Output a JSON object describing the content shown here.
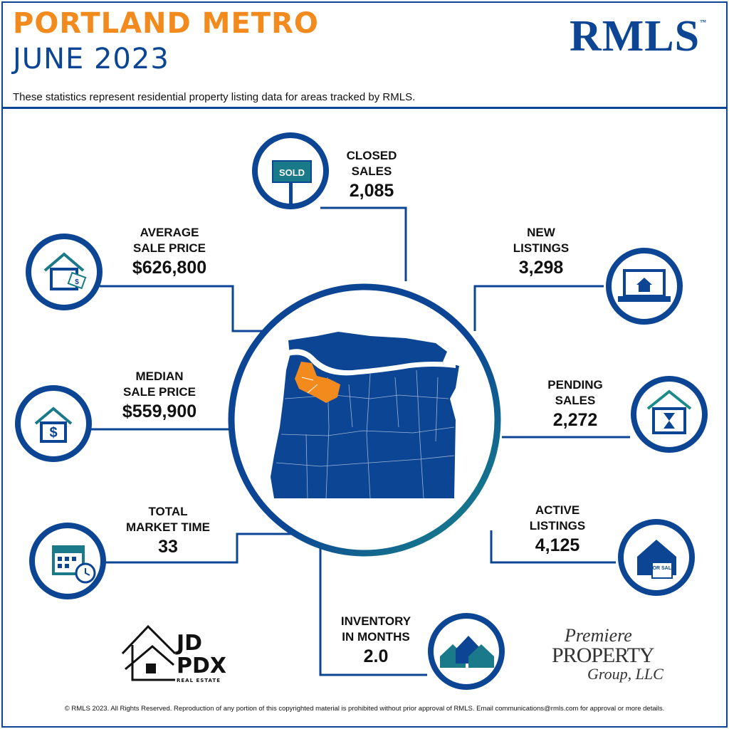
{
  "header": {
    "title_line1": "PORTLAND METRO",
    "title_line2": "JUNE 2023",
    "subtitle": "These statistics represent residential property listing data for areas tracked by RMLS."
  },
  "logo": {
    "text": "RMLS",
    "tm": "™"
  },
  "stats": {
    "closed_sales": {
      "label1": "CLOSED",
      "label2": "SALES",
      "value": "2,085",
      "icon": "sold-sign-icon"
    },
    "new_listings": {
      "label1": "NEW",
      "label2": "LISTINGS",
      "value": "3,298",
      "icon": "laptop-house-icon"
    },
    "pending_sales": {
      "label1": "PENDING",
      "label2": "SALES",
      "value": "2,272",
      "icon": "house-hourglass-icon"
    },
    "active_listings": {
      "label1": "ACTIVE",
      "label2": "LISTINGS",
      "value": "4,125",
      "icon": "for-sale-house-icon"
    },
    "inventory": {
      "label1": "INVENTORY",
      "label2": "IN MONTHS",
      "value": "2.0",
      "icon": "houses-icon"
    },
    "total_market_time": {
      "label1": "TOTAL",
      "label2": "MARKET TIME",
      "value": "33",
      "icon": "calendar-clock-icon"
    },
    "median_sale_price": {
      "label1": "MEDIAN",
      "label2": "SALE PRICE",
      "value": "$559,900",
      "icon": "house-dollar-icon"
    },
    "average_sale_price": {
      "label1": "AVERAGE",
      "label2": "SALE PRICE",
      "value": "$626,800",
      "icon": "house-price-tag-icon"
    }
  },
  "sign_text": "SOLD",
  "for_sale_text": "FOR SALE",
  "sponsors": {
    "jd_line1": "JD",
    "jd_line2": "PDX",
    "jd_line3": "REAL ESTATE",
    "premiere_line1": "Premiere",
    "premiere_line2": "PROPERTY",
    "premiere_line3": "Group, LLC"
  },
  "footer": "© RMLS 2023. All Rights Reserved. Reproduction of any portion of this copyrighted material is prohibited without prior approval of RMLS. Email communications@rmls.com for approval or more details.",
  "colors": {
    "navy": "#0b4594",
    "orange": "#f28a1d",
    "teal": "#1a8a8a"
  }
}
